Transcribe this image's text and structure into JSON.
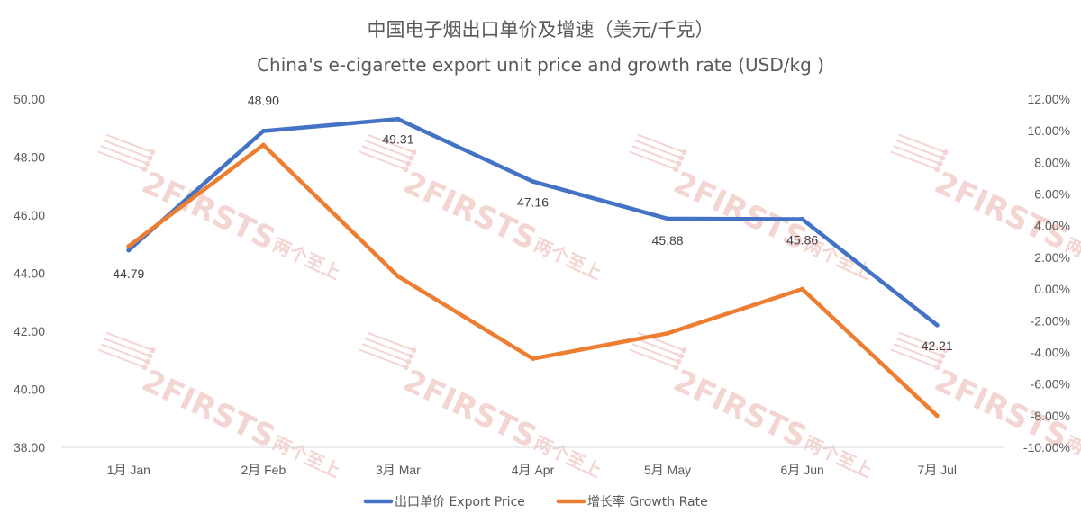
{
  "chart_data": {
    "type": "line",
    "title": "中国电子烟出口单价及增速（美元/千克）",
    "subtitle": "China's e-cigarette export unit price and growth rate (USD/kg )",
    "categories": [
      "1月 Jan",
      "2月 Feb",
      "3月 Mar",
      "4月 Apr",
      "5月 May",
      "6月 Jun",
      "7月 Jul"
    ],
    "series": [
      {
        "name": "出口单价 Export Price",
        "axis": "left",
        "color": "#4472c4",
        "values": [
          44.79,
          48.9,
          49.31,
          47.16,
          45.88,
          45.86,
          42.21
        ],
        "labels": [
          "44.79",
          "48.90",
          "49.31",
          "47.16",
          "45.88",
          "45.86",
          "42.21"
        ]
      },
      {
        "name": "增长率 Growth Rate",
        "axis": "right",
        "color": "#ed7d31",
        "values": [
          2.7,
          9.1,
          0.8,
          -4.4,
          -2.8,
          0.0,
          -8.0
        ]
      }
    ],
    "y_left": {
      "ylim": [
        38,
        50
      ],
      "ticks": [
        38,
        40,
        42,
        44,
        46,
        48,
        50
      ],
      "tick_labels": [
        "38.00",
        "40.00",
        "42.00",
        "44.00",
        "46.00",
        "48.00",
        "50.00"
      ]
    },
    "y_right": {
      "ylim": [
        -10,
        12
      ],
      "ticks": [
        -10,
        -8,
        -6,
        -4,
        -2,
        0,
        2,
        4,
        6,
        8,
        10,
        12
      ],
      "tick_labels": [
        "-10.00%",
        "-8.00%",
        "-6.00%",
        "-4.00%",
        "-2.00%",
        "0.00%",
        "2.00%",
        "4.00%",
        "6.00%",
        "8.00%",
        "10.00%",
        "12.00%"
      ]
    },
    "grid": false,
    "legend_position": "bottom"
  },
  "watermark": {
    "text": "2FIRSTS",
    "subtext": "两个至上"
  }
}
